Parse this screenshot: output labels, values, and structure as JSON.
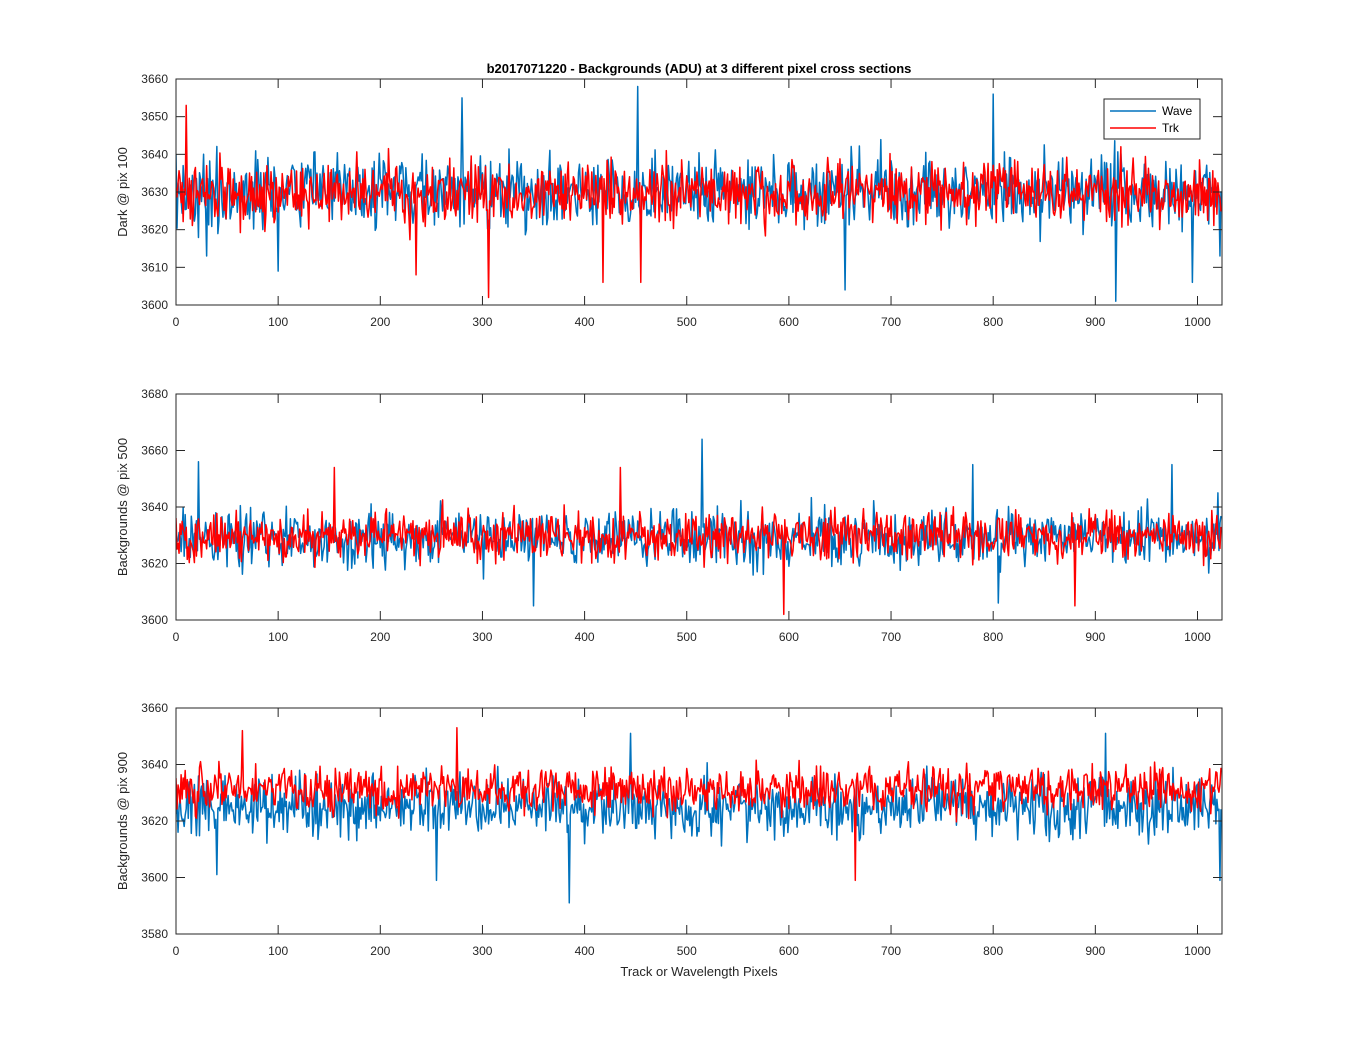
{
  "figure": {
    "title": "b2017071220 - Backgrounds (ADU) at 3 different pixel cross sections",
    "xlabel": "Track or Wavelength Pixels"
  },
  "legend": {
    "entries": [
      {
        "name": "Wave",
        "color": "#0072BD"
      },
      {
        "name": "Trk",
        "color": "#FF0000"
      }
    ],
    "placement": "top-right of first panel"
  },
  "chart_data": [
    {
      "type": "line",
      "ylabel": "Dark @ pix 100",
      "xlim": [
        0,
        1024
      ],
      "ylim": [
        3600,
        3660
      ],
      "xticks": [
        0,
        100,
        200,
        300,
        400,
        500,
        600,
        700,
        800,
        900,
        1000
      ],
      "yticks": [
        3600,
        3610,
        3620,
        3630,
        3640,
        3650,
        3660
      ],
      "n_points": 1024,
      "series": [
        {
          "name": "Wave",
          "color": "#0072BD",
          "mean": 3630,
          "amplitude": 14,
          "min": 3601,
          "max": 3658,
          "spikes": [
            [
              7,
              3637
            ],
            [
              30,
              3613
            ],
            [
              100,
              3609
            ],
            [
              280,
              3655
            ],
            [
              452,
              3658
            ],
            [
              655,
              3604
            ],
            [
              800,
              3656
            ],
            [
              920,
              3601
            ],
            [
              995,
              3606
            ],
            [
              1022,
              3613
            ]
          ]
        },
        {
          "name": "Trk",
          "color": "#FF0000",
          "mean": 3630,
          "amplitude": 12,
          "min": 3602,
          "max": 3653,
          "spikes": [
            [
              10,
              3653
            ],
            [
              235,
              3608
            ],
            [
              306,
              3602
            ],
            [
              418,
              3606
            ],
            [
              455,
              3606
            ]
          ]
        }
      ]
    },
    {
      "type": "line",
      "ylabel": "Backgrounds @ pix 500",
      "xlim": [
        0,
        1024
      ],
      "ylim": [
        3600,
        3680
      ],
      "xticks": [
        0,
        100,
        200,
        300,
        400,
        500,
        600,
        700,
        800,
        900,
        1000
      ],
      "yticks": [
        3600,
        3620,
        3640,
        3660,
        3680
      ],
      "n_points": 1024,
      "series": [
        {
          "name": "Wave",
          "color": "#0072BD",
          "mean": 3629,
          "amplitude": 14,
          "min": 3603,
          "max": 3664,
          "spikes": [
            [
              22,
              3656
            ],
            [
              350,
              3605
            ],
            [
              515,
              3664
            ],
            [
              780,
              3655
            ],
            [
              805,
              3606
            ],
            [
              975,
              3655
            ],
            [
              1020,
              3645
            ]
          ]
        },
        {
          "name": "Trk",
          "color": "#FF0000",
          "mean": 3630,
          "amplitude": 12,
          "min": 3602,
          "max": 3654,
          "spikes": [
            [
              155,
              3654
            ],
            [
              435,
              3654
            ],
            [
              595,
              3602
            ],
            [
              880,
              3605
            ]
          ]
        }
      ]
    },
    {
      "type": "line",
      "ylabel": "Backgrounds @ pix 900",
      "xlim": [
        0,
        1024
      ],
      "ylim": [
        3580,
        3660
      ],
      "xticks": [
        0,
        100,
        200,
        300,
        400,
        500,
        600,
        700,
        800,
        900,
        1000
      ],
      "yticks": [
        3580,
        3600,
        3620,
        3640,
        3660
      ],
      "n_points": 1024,
      "series": [
        {
          "name": "Wave",
          "color": "#0072BD",
          "mean": 3625,
          "amplitude": 15,
          "min": 3591,
          "max": 3651,
          "spikes": [
            [
              40,
              3601
            ],
            [
              255,
              3599
            ],
            [
              385,
              3591
            ],
            [
              445,
              3651
            ],
            [
              910,
              3651
            ],
            [
              1022,
              3599
            ]
          ]
        },
        {
          "name": "Trk",
          "color": "#FF0000",
          "mean": 3631,
          "amplitude": 12,
          "min": 3599,
          "max": 3653,
          "spikes": [
            [
              65,
              3652
            ],
            [
              275,
              3653
            ],
            [
              665,
              3599
            ]
          ]
        }
      ]
    }
  ]
}
